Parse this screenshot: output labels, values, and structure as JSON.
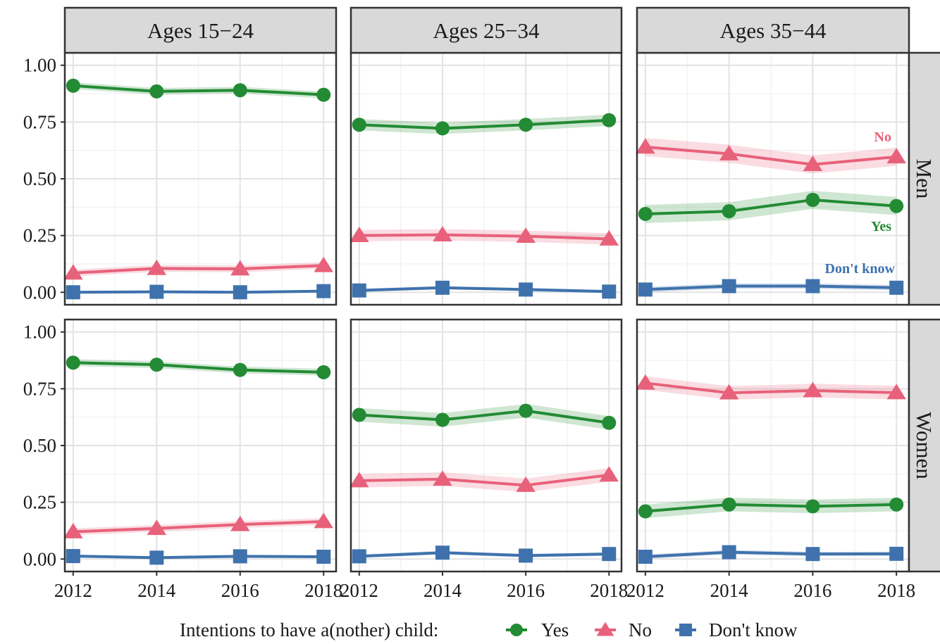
{
  "chart_data": {
    "type": "line",
    "x": [
      2012,
      2014,
      2016,
      2018
    ],
    "ylim": [
      0,
      1
    ],
    "y_ticks": [
      "0.00",
      "0.25",
      "0.50",
      "0.75",
      "1.00"
    ],
    "x_ticks": [
      "2012",
      "2014",
      "2016",
      "2018"
    ],
    "grid": true,
    "columns": [
      "Ages 15−24",
      "Ages 25−34",
      "Ages 35−44"
    ],
    "rows": [
      "Men",
      "Women"
    ],
    "series_names": [
      "Yes",
      "No",
      "Don't know"
    ],
    "colors": {
      "yes": "#238b34",
      "no": "#e8617a",
      "dk": "#3f72ad"
    },
    "legend": {
      "title": "Intentions to have a(nother) child:",
      "position": "bottom"
    },
    "annotations": {
      "no": "No",
      "yes": "Yes",
      "dk": "Don't know"
    },
    "panels": [
      {
        "row": 0,
        "col": 0,
        "series": [
          {
            "name": "Yes",
            "values": [
              0.91,
              0.885,
              0.89,
              0.87
            ],
            "band": 0.015
          },
          {
            "name": "No",
            "values": [
              0.085,
              0.105,
              0.103,
              0.118
            ],
            "band": 0.015
          },
          {
            "name": "Don't know",
            "values": [
              0.0,
              0.002,
              0.0,
              0.005
            ],
            "band": 0.006
          }
        ]
      },
      {
        "row": 0,
        "col": 1,
        "series": [
          {
            "name": "Yes",
            "values": [
              0.738,
              0.722,
              0.738,
              0.758
            ],
            "band": 0.025
          },
          {
            "name": "No",
            "values": [
              0.25,
              0.253,
              0.247,
              0.235
            ],
            "band": 0.025
          },
          {
            "name": "Don't know",
            "values": [
              0.008,
              0.02,
              0.012,
              0.003
            ],
            "band": 0.007
          }
        ]
      },
      {
        "row": 0,
        "col": 2,
        "series": [
          {
            "name": "Yes",
            "values": [
              0.345,
              0.357,
              0.407,
              0.38
            ],
            "band": 0.04
          },
          {
            "name": "No",
            "values": [
              0.64,
              0.61,
              0.563,
              0.597
            ],
            "band": 0.04
          },
          {
            "name": "Don't know",
            "values": [
              0.012,
              0.027,
              0.027,
              0.02
            ],
            "band": 0.012
          }
        ]
      },
      {
        "row": 1,
        "col": 0,
        "series": [
          {
            "name": "Yes",
            "values": [
              0.865,
              0.856,
              0.833,
              0.823
            ],
            "band": 0.015
          },
          {
            "name": "No",
            "values": [
              0.12,
              0.135,
              0.152,
              0.165
            ],
            "band": 0.015
          },
          {
            "name": "Don't know",
            "values": [
              0.013,
              0.006,
              0.012,
              0.01
            ],
            "band": 0.006
          }
        ]
      },
      {
        "row": 1,
        "col": 1,
        "series": [
          {
            "name": "Yes",
            "values": [
              0.635,
              0.613,
              0.653,
              0.6
            ],
            "band": 0.03
          },
          {
            "name": "No",
            "values": [
              0.345,
              0.352,
              0.325,
              0.37
            ],
            "band": 0.03
          },
          {
            "name": "Don't know",
            "values": [
              0.012,
              0.028,
              0.015,
              0.022
            ],
            "band": 0.008
          }
        ]
      },
      {
        "row": 1,
        "col": 2,
        "series": [
          {
            "name": "Yes",
            "values": [
              0.21,
              0.24,
              0.232,
              0.24
            ],
            "band": 0.03
          },
          {
            "name": "No",
            "values": [
              0.775,
              0.732,
              0.742,
              0.733
            ],
            "band": 0.03
          },
          {
            "name": "Don't know",
            "values": [
              0.01,
              0.03,
              0.022,
              0.023
            ],
            "band": 0.01
          }
        ]
      }
    ]
  }
}
